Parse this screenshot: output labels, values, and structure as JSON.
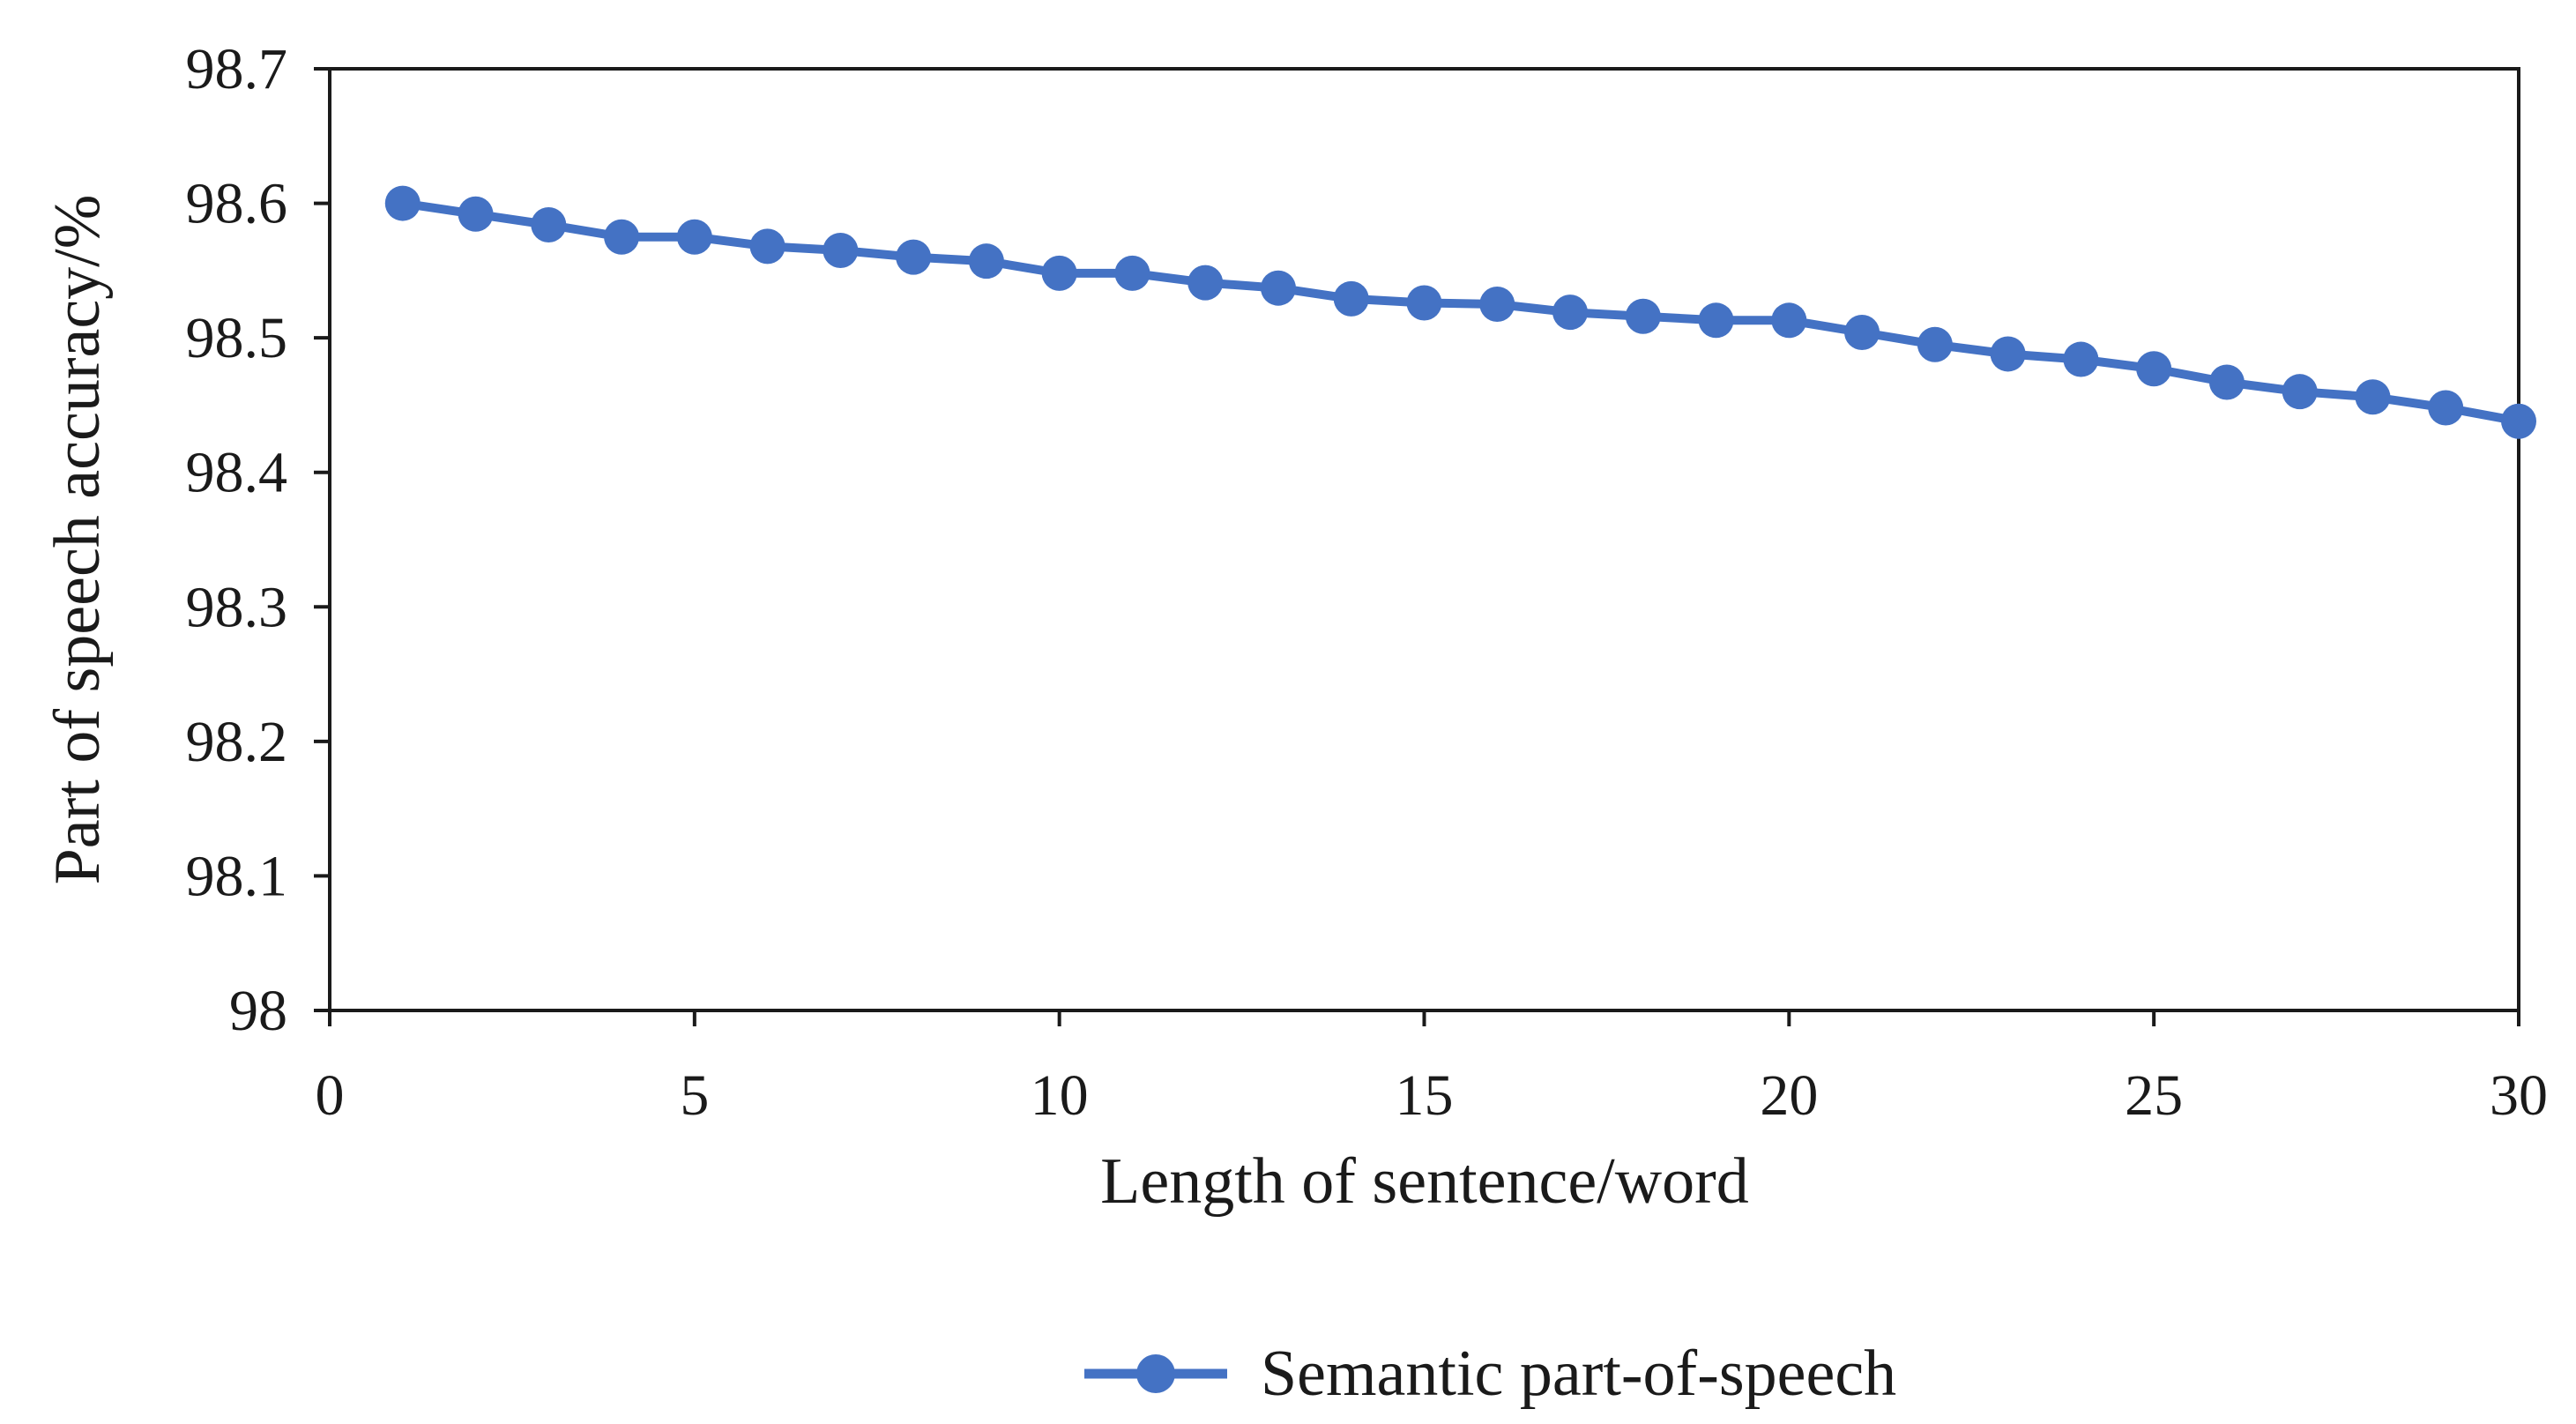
{
  "chart_data": {
    "type": "line",
    "title": "",
    "xlabel": "Length of sentence/word",
    "ylabel": "Part of speech accuracy/%",
    "xlim": [
      0,
      30
    ],
    "ylim": [
      98,
      98.7
    ],
    "x_ticks": [
      "0",
      "5",
      "10",
      "15",
      "20",
      "25",
      "30"
    ],
    "y_ticks": [
      "98",
      "98.1",
      "98.2",
      "98.3",
      "98.4",
      "98.5",
      "98.6",
      "98.7"
    ],
    "grid": false,
    "legend_position": "bottom",
    "series": [
      {
        "name": "Semantic part-of-speech",
        "color": "#4472C4",
        "marker": "circle",
        "x": [
          1,
          2,
          3,
          4,
          5,
          6,
          7,
          8,
          9,
          10,
          11,
          12,
          13,
          14,
          15,
          16,
          17,
          18,
          19,
          20,
          21,
          22,
          23,
          24,
          25,
          26,
          27,
          28,
          29,
          30
        ],
        "y": [
          98.6,
          98.592,
          98.584,
          98.575,
          98.575,
          98.568,
          98.565,
          98.56,
          98.557,
          98.548,
          98.548,
          98.541,
          98.537,
          98.529,
          98.526,
          98.525,
          98.519,
          98.516,
          98.513,
          98.513,
          98.504,
          98.495,
          98.488,
          98.484,
          98.477,
          98.467,
          98.46,
          98.456,
          98.448,
          98.438
        ]
      }
    ]
  }
}
